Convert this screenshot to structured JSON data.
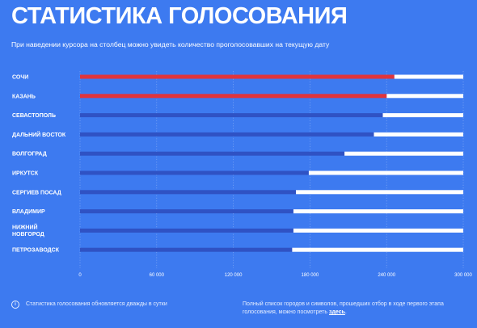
{
  "header": {
    "title": "СТАТИСТИКА ГОЛОСОВАНИЯ",
    "subtitle": "При наведении курсора на столбец можно увидеть количество проголосовавших на текущую дату"
  },
  "footer": {
    "info_icon": "info-icon",
    "note": "Статистика голосования обновляется дважды в сутки",
    "list_text": "Полный список городов и символов, прошедших отбор в ходе первого этапа голосования, можно посмотреть",
    "link_label": "здесь",
    "link_suffix": "."
  },
  "colors": {
    "background": "#3d7af0",
    "highlight": "#e0343c",
    "bar": "#2f52c4",
    "remainder": "#ffffff"
  },
  "chart_data": {
    "type": "bar",
    "orientation": "horizontal",
    "categories": [
      [
        "СОЧИ"
      ],
      [
        "КАЗАНЬ"
      ],
      [
        "СЕВАСТОПОЛЬ"
      ],
      [
        "ДАЛЬНИЙ ВОСТОК"
      ],
      [
        "ВОЛГОГРАД"
      ],
      [
        "ИРКУТСК"
      ],
      [
        "СЕРГИЕВ ПОСАД"
      ],
      [
        "ВЛАДИМИР"
      ],
      [
        "НИЖНИЙ",
        "НОВГОРОД"
      ],
      [
        "ПЕТРОЗАВОДСК"
      ]
    ],
    "values": [
      246000,
      240000,
      237000,
      230000,
      207000,
      179000,
      169000,
      167000,
      167000,
      166000
    ],
    "highlighted": [
      true,
      true,
      false,
      false,
      false,
      false,
      false,
      false,
      false,
      false
    ],
    "xlim": [
      0,
      300000
    ],
    "ticks": [
      0,
      60000,
      120000,
      180000,
      240000,
      300000
    ],
    "tick_labels": [
      "0",
      "60 000",
      "120 000",
      "180 000",
      "240 000",
      "300 000"
    ],
    "grid": "vertical dotted"
  }
}
